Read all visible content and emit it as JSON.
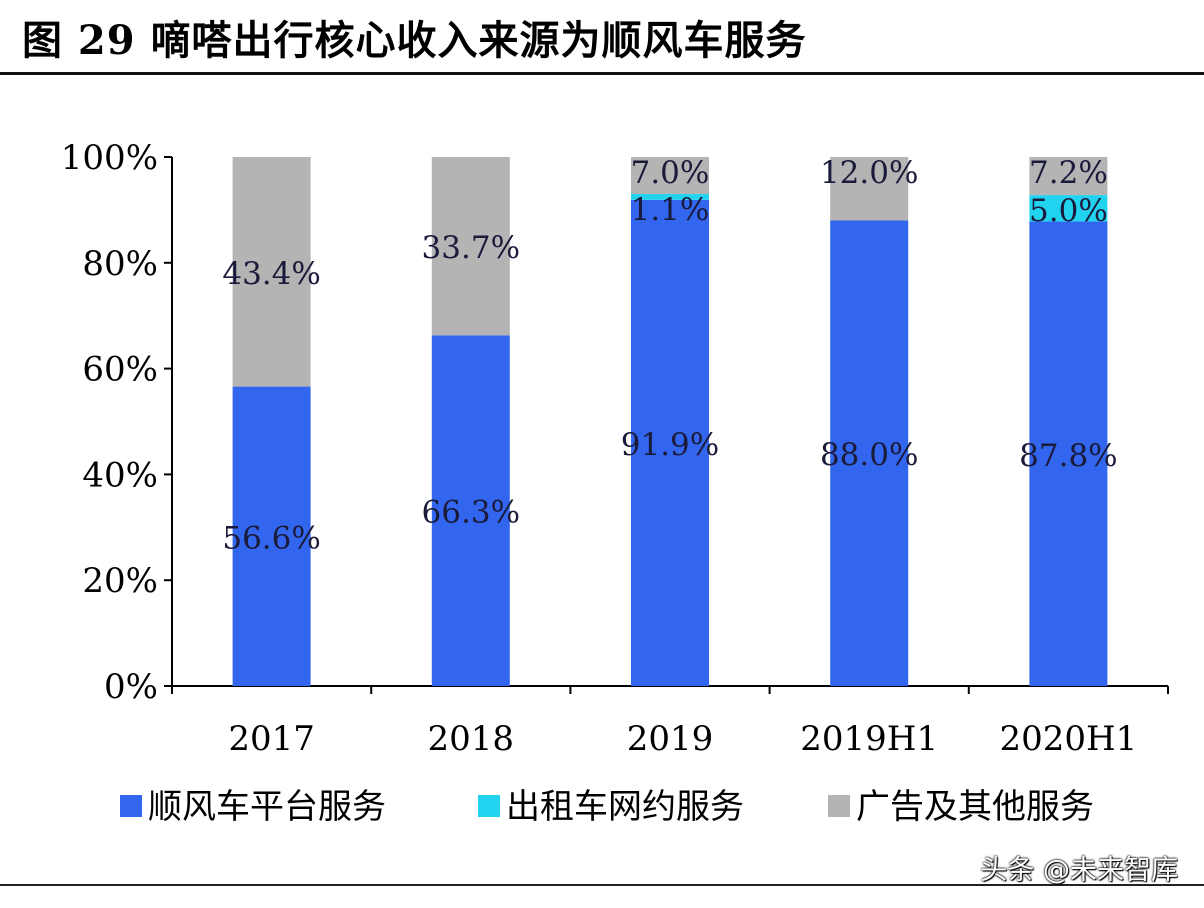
{
  "title": "图 29 嘀嗒出行核心收入来源为顺风车服务",
  "watermark": "头条 @未来智库",
  "chart_data": {
    "type": "bar",
    "stacked": true,
    "categories": [
      "2017",
      "2018",
      "2019",
      "2019H1",
      "2020H1"
    ],
    "series": [
      {
        "name": "顺风车平台服务",
        "color": "#3366ee",
        "values": [
          56.6,
          66.3,
          91.9,
          88.0,
          87.8
        ],
        "labels": [
          "56.6%",
          "66.3%",
          "91.9%",
          "88.0%",
          "87.8%"
        ]
      },
      {
        "name": "出租车网约服务",
        "color": "#22d3f0",
        "values": [
          0,
          0,
          1.1,
          0,
          5.0
        ],
        "labels": [
          "",
          "",
          "1.1%",
          "",
          "5.0%"
        ]
      },
      {
        "name": "广告及其他服务",
        "color": "#b4b4b4",
        "values": [
          43.4,
          33.7,
          7.0,
          12.0,
          7.2
        ],
        "labels": [
          "43.4%",
          "33.7%",
          "7.0%",
          "12.0%",
          "7.2%"
        ]
      }
    ],
    "ylim": [
      0,
      100
    ],
    "yticks": [
      "0%",
      "20%",
      "40%",
      "60%",
      "80%",
      "100%"
    ],
    "legend_position": "bottom",
    "grid": false
  }
}
